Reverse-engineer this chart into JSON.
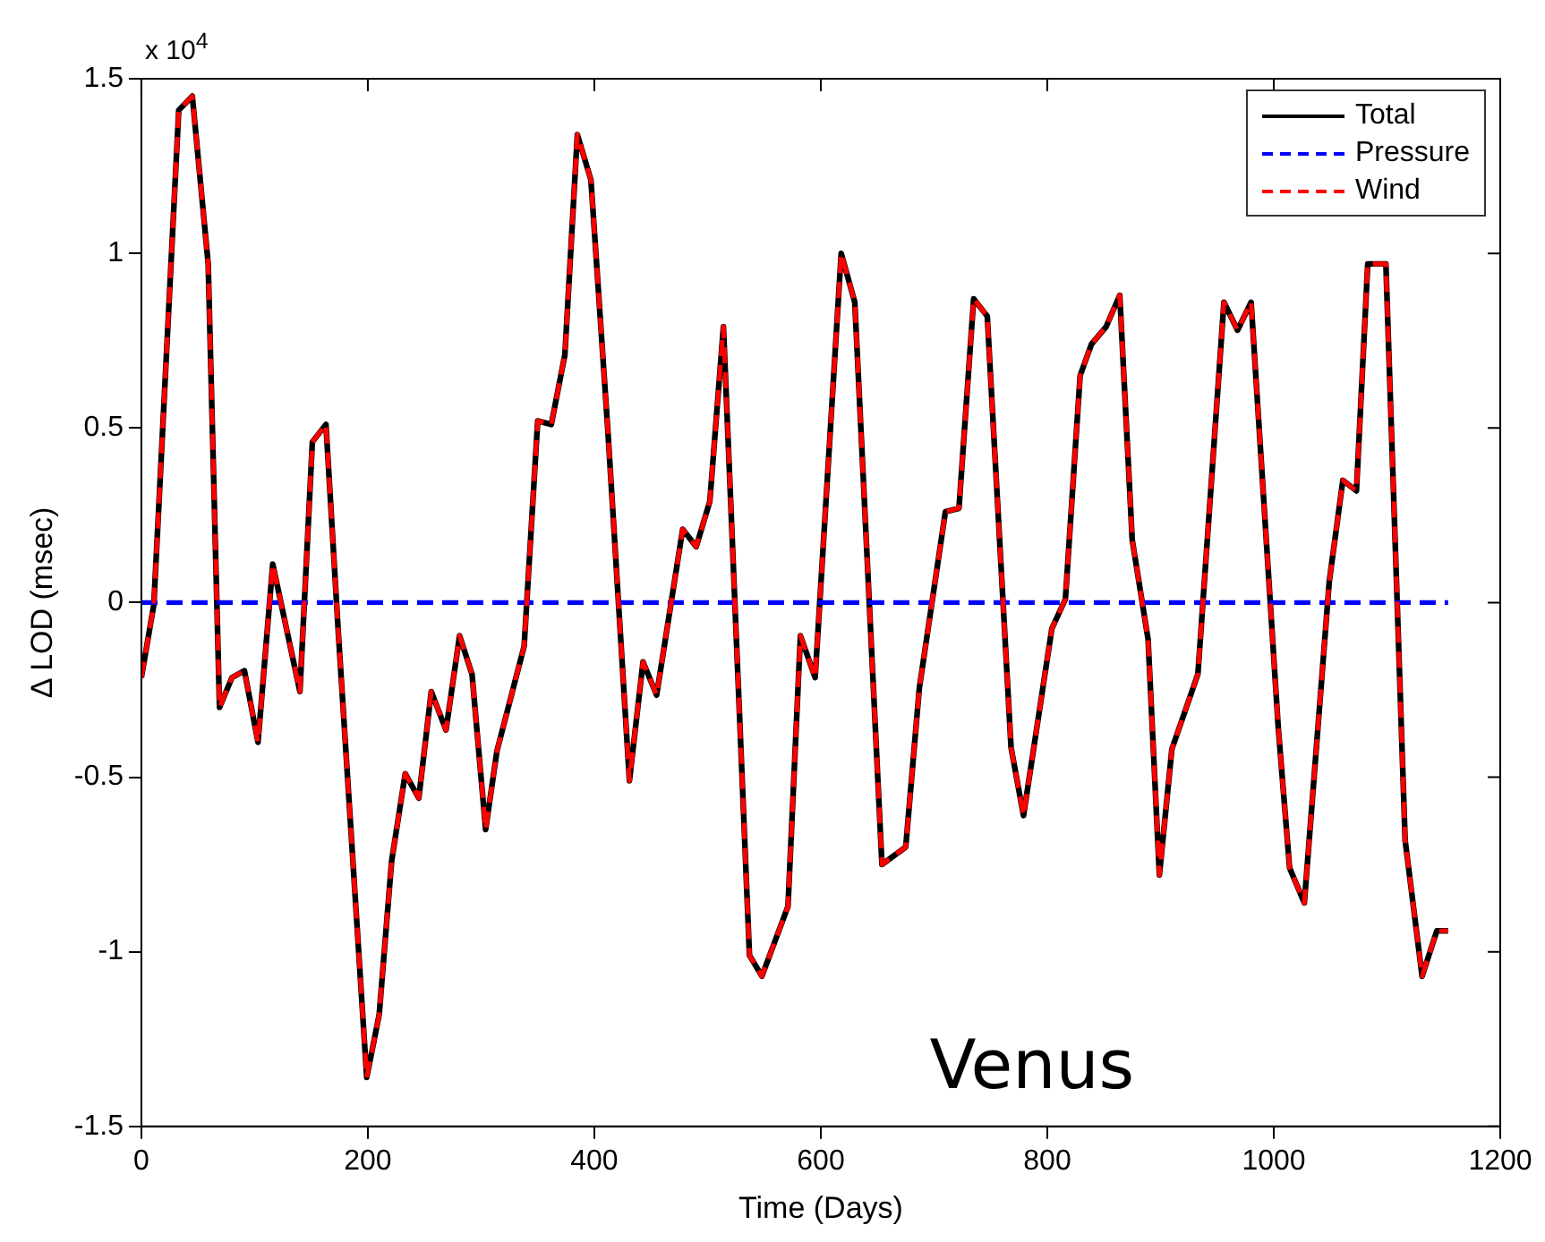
{
  "chart_data": {
    "type": "line",
    "xlabel": "Time (Days)",
    "ylabel": "Δ LOD (msec)",
    "annotations": [
      "x 10$^{4}$",
      "Venus"
    ],
    "xlim": [
      0,
      1200
    ],
    "xticks": [
      0,
      200,
      400,
      600,
      800,
      1000,
      1200
    ],
    "ylim": [
      -1.5,
      1.5
    ],
    "yticks": [
      -1.5,
      -1,
      -0.5,
      0,
      0.5,
      1,
      1.5
    ],
    "grid": false,
    "legend": "top right",
    "marker": "none",
    "series": [
      {
        "name": "Total",
        "color": "#000000",
        "line_style": "solid",
        "x": [
          0,
          11,
          33,
          45,
          59,
          69,
          80,
          91,
          103,
          116,
          140,
          151,
          163,
          174,
          199,
          210,
          221,
          233,
          245,
          256,
          269,
          281,
          292,
          304,
          314,
          338,
          350,
          362,
          374,
          385,
          397,
          412,
          431,
          443,
          455,
          478,
          490,
          502,
          514,
          537,
          548,
          571,
          582,
          595,
          618,
          630,
          654,
          675,
          687,
          710,
          722,
          735,
          747,
          768,
          779,
          804,
          816,
          829,
          839,
          852,
          864,
          875,
          889,
          899,
          910,
          933,
          956,
          968,
          980,
          1004,
          1014,
          1027,
          1049,
          1061,
          1073,
          1083,
          1099,
          1116,
          1131,
          1144,
          1154
        ],
        "values": [
          -0.215,
          -0.006,
          1.41,
          1.45,
          0.97,
          -0.3,
          -0.215,
          -0.195,
          -0.4,
          0.11,
          -0.255,
          0.46,
          0.51,
          -0.09,
          -1.36,
          -1.18,
          -0.74,
          -0.49,
          -0.56,
          -0.255,
          -0.365,
          -0.095,
          -0.205,
          -0.65,
          -0.425,
          -0.125,
          0.52,
          0.51,
          0.71,
          1.34,
          1.21,
          0.49,
          -0.51,
          -0.17,
          -0.265,
          0.21,
          0.16,
          0.29,
          0.79,
          -1.01,
          -1.07,
          -0.87,
          -0.095,
          -0.215,
          1.0,
          0.86,
          -0.75,
          -0.7,
          -0.245,
          0.26,
          0.27,
          0.87,
          0.82,
          -0.415,
          -0.61,
          -0.075,
          0.01,
          0.65,
          0.74,
          0.79,
          0.88,
          0.18,
          -0.105,
          -0.78,
          -0.42,
          -0.205,
          0.86,
          0.78,
          0.86,
          -0.36,
          -0.76,
          -0.86,
          0.06,
          0.35,
          0.32,
          0.97,
          0.97,
          -0.68,
          -1.07,
          -0.94,
          -0.94
        ]
      },
      {
        "name": "Pressure",
        "color": "#0000ff",
        "line_style": "dashed",
        "x": [
          0,
          1154
        ],
        "values": [
          0,
          0
        ]
      },
      {
        "name": "Wind",
        "color": "#ff0000",
        "line_style": "dashed",
        "x": [
          0,
          11,
          33,
          45,
          59,
          69,
          80,
          91,
          103,
          116,
          140,
          151,
          163,
          174,
          199,
          210,
          221,
          233,
          245,
          256,
          269,
          281,
          292,
          304,
          314,
          338,
          350,
          362,
          374,
          385,
          397,
          412,
          431,
          443,
          455,
          478,
          490,
          502,
          514,
          537,
          548,
          571,
          582,
          595,
          618,
          630,
          654,
          675,
          687,
          710,
          722,
          735,
          747,
          768,
          779,
          804,
          816,
          829,
          839,
          852,
          864,
          875,
          889,
          899,
          910,
          933,
          956,
          968,
          980,
          1004,
          1014,
          1027,
          1049,
          1061,
          1073,
          1083,
          1099,
          1116,
          1131,
          1144,
          1154
        ],
        "values": [
          -0.215,
          -0.006,
          1.41,
          1.45,
          0.97,
          -0.3,
          -0.215,
          -0.195,
          -0.4,
          0.11,
          -0.255,
          0.46,
          0.51,
          -0.09,
          -1.36,
          -1.18,
          -0.74,
          -0.49,
          -0.56,
          -0.255,
          -0.365,
          -0.095,
          -0.205,
          -0.65,
          -0.425,
          -0.125,
          0.52,
          0.51,
          0.71,
          1.34,
          1.21,
          0.49,
          -0.51,
          -0.17,
          -0.265,
          0.21,
          0.16,
          0.29,
          0.79,
          -1.01,
          -1.07,
          -0.87,
          -0.095,
          -0.215,
          1.0,
          0.86,
          -0.75,
          -0.7,
          -0.245,
          0.26,
          0.27,
          0.87,
          0.82,
          -0.415,
          -0.61,
          -0.075,
          0.01,
          0.65,
          0.74,
          0.79,
          0.88,
          0.18,
          -0.105,
          -0.78,
          -0.42,
          -0.205,
          0.86,
          0.78,
          0.86,
          -0.36,
          -0.76,
          -0.86,
          0.06,
          0.35,
          0.32,
          0.97,
          0.97,
          -0.68,
          -1.07,
          -0.94,
          -0.94
        ]
      }
    ]
  }
}
